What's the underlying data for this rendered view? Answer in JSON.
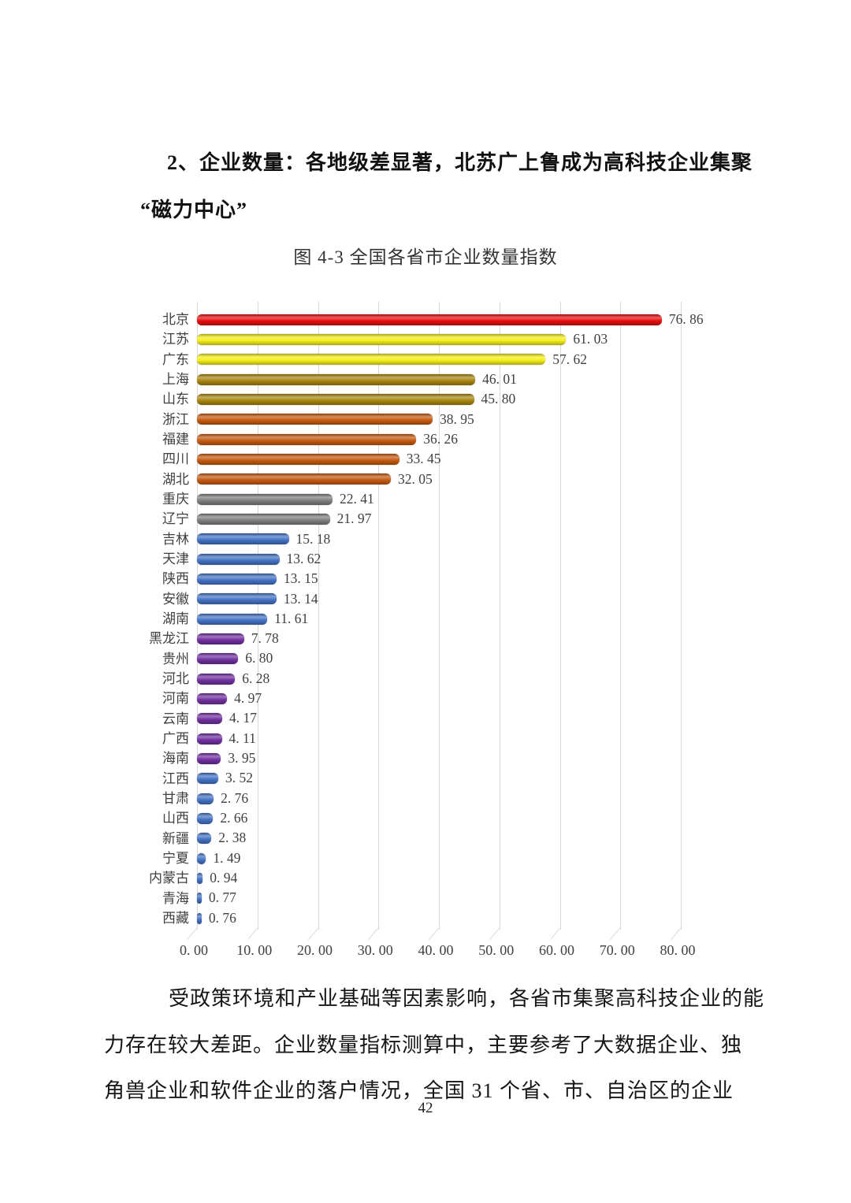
{
  "page": {
    "number": "42"
  },
  "heading": {
    "line1": "2、企业数量：各地级差显著，北苏广上鲁成为高科技企业集聚",
    "line2": "“磁力中心”"
  },
  "chart_data": {
    "type": "bar",
    "orientation": "horizontal",
    "title": "图 4-3 全国各省市企业数量指数",
    "categories": [
      "北京",
      "江苏",
      "广东",
      "上海",
      "山东",
      "浙江",
      "福建",
      "四川",
      "湖北",
      "重庆",
      "辽宁",
      "吉林",
      "天津",
      "陕西",
      "安徽",
      "湖南",
      "黑龙江",
      "贵州",
      "河北",
      "河南",
      "云南",
      "广西",
      "海南",
      "江西",
      "甘肃",
      "山西",
      "新疆",
      "宁夏",
      "内蒙古",
      "青海",
      "西藏"
    ],
    "values": [
      76.86,
      61.03,
      57.62,
      46.01,
      45.8,
      38.95,
      36.26,
      33.45,
      32.05,
      22.41,
      21.97,
      15.18,
      13.62,
      13.15,
      13.14,
      11.61,
      7.78,
      6.8,
      6.28,
      4.97,
      4.17,
      4.11,
      3.95,
      3.52,
      2.76,
      2.66,
      2.38,
      1.49,
      0.94,
      0.77,
      0.76
    ],
    "bar_colors": [
      "#e60d0d",
      "#f5ee1a",
      "#f5ee1a",
      "#a98611",
      "#a98611",
      "#c55a11",
      "#c55a11",
      "#c55a11",
      "#c55a11",
      "#7f7f7f",
      "#7f7f7f",
      "#4472c4",
      "#4472c4",
      "#4472c4",
      "#4472c4",
      "#4472c4",
      "#7030a0",
      "#7030a0",
      "#7030a0",
      "#7030a0",
      "#7030a0",
      "#7030a0",
      "#7030a0",
      "#4472c4",
      "#4472c4",
      "#4472c4",
      "#4472c4",
      "#4472c4",
      "#4472c4",
      "#4472c4",
      "#4472c4"
    ],
    "xlabel": "",
    "ylabel": "",
    "xlim": [
      0,
      80
    ],
    "x_ticks": [
      "0.00",
      "10.00",
      "20.00",
      "30.00",
      "40.00",
      "50.00",
      "60.00",
      "70.00",
      "80.00"
    ],
    "grid": true,
    "value_labels": true,
    "legend": false
  },
  "paragraph": {
    "line1": "受政策环境和产业基础等因素影响，各省市集聚高科技企业的能",
    "line2": "力存在较大差距。企业数量指标测算中，主要参考了大数据企业、独",
    "line3": "角兽企业和软件企业的落户情况，全国 31 个省、市、自治区的企业"
  },
  "colors": {
    "gridline": "#d9d9d9",
    "axis_text": "#404040",
    "body_text": "#1a1a1a"
  }
}
